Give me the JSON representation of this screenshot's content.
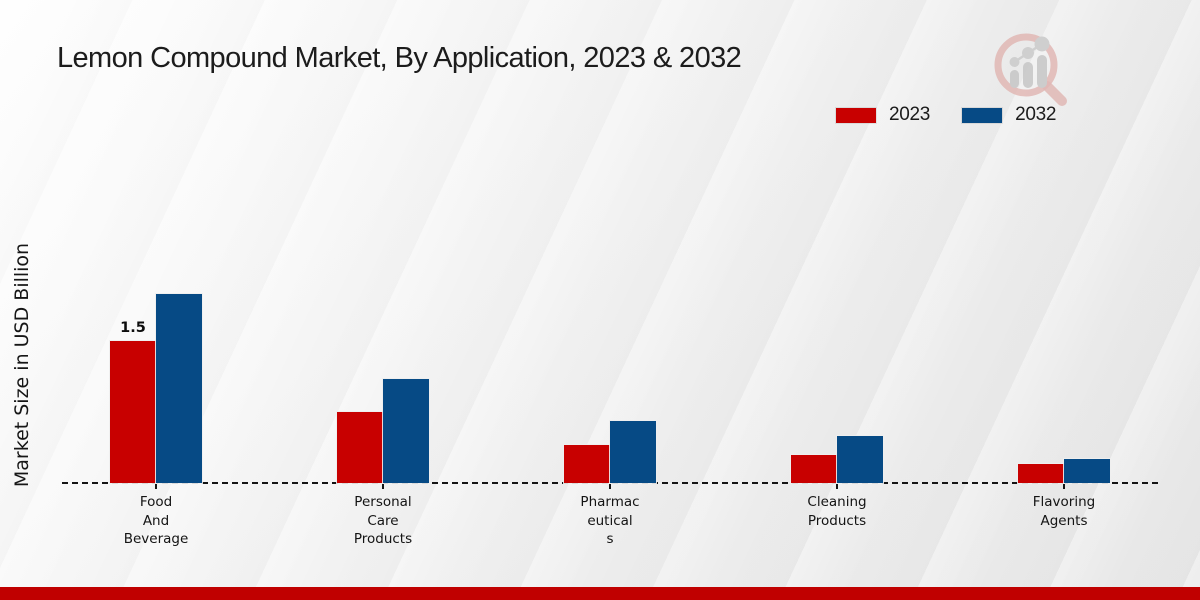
{
  "page": {
    "background_top": "#fdfdfd",
    "background_bottom": "#e7e7e7",
    "footer_bar_color": "#c00000",
    "logo": "magnifier-bar-chart-logo"
  },
  "chart_data": {
    "type": "bar",
    "title": "Lemon Compound Market, By Application, 2023 & 2032",
    "ylabel": "Market Size in USD Billion",
    "xlabel": "",
    "categories": [
      "Food And Beverage",
      "Personal Care Products",
      "Pharmaceuticals",
      "Cleaning Products",
      "Flavoring Agents"
    ],
    "category_label_lines": [
      [
        "Food",
        "And",
        "Beverage"
      ],
      [
        "Personal",
        "Care",
        "Products"
      ],
      [
        "Pharmac",
        "eutical",
        "s"
      ],
      [
        "Cleaning",
        "Products"
      ],
      [
        "Flavoring",
        "Agents"
      ]
    ],
    "series": [
      {
        "name": "2023",
        "color": "#c80000",
        "values": [
          1.5,
          0.75,
          0.4,
          0.3,
          0.2
        ]
      },
      {
        "name": "2032",
        "color": "#064a85",
        "values": [
          2.0,
          1.1,
          0.65,
          0.5,
          0.25
        ]
      }
    ],
    "bar_labels": [
      {
        "series_index": 0,
        "category_index": 0,
        "text": "1.5"
      }
    ],
    "ylim": [
      0,
      2.2
    ],
    "grid": false,
    "legend_position": "top-right",
    "baseline_style": "dashed"
  }
}
